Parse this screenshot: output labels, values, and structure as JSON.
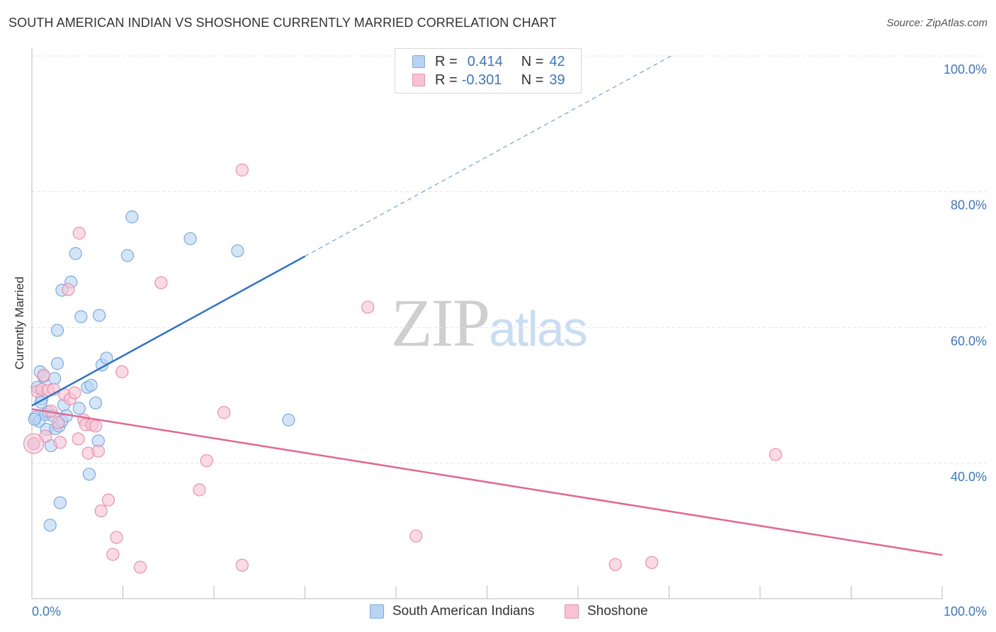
{
  "header": {
    "title": "SOUTH AMERICAN INDIAN VS SHOSHONE CURRENTLY MARRIED CORRELATION CHART",
    "source": "Source: ZipAtlas.com"
  },
  "watermark": {
    "zip": "ZIP",
    "atlas": "atlas"
  },
  "legend": {
    "rows": [
      {
        "r_label": "R =",
        "r_value": "0.414",
        "n_label": "N =",
        "n_value": "42"
      },
      {
        "r_label": "R =",
        "r_value": "-0.301",
        "n_label": "N =",
        "n_value": "39"
      }
    ]
  },
  "colors": {
    "blue_fill": "#b8d4f2",
    "blue_stroke": "#7aaae0",
    "blue_line": "#2f72c8",
    "pink_fill": "#f7c3d3",
    "pink_stroke": "#ec8fae",
    "pink_line": "#e06893",
    "grid": "#e3e3e3",
    "axis_text": "#3a78c9"
  },
  "chart_data": {
    "type": "scatter",
    "ylabel": "Currently Married",
    "x_tick_labels": [
      "0.0%",
      "100.0%"
    ],
    "y_tick_labels": [
      "100.0%",
      "80.0%",
      "60.0%",
      "40.0%"
    ],
    "xlim": [
      0,
      100
    ],
    "ylim": [
      18,
      102
    ],
    "y_gridlines": [
      40,
      60,
      80,
      100
    ],
    "series": [
      {
        "name": "South American Indians",
        "color": "blue",
        "points": [
          [
            0.2,
            42.9
          ],
          [
            0.4,
            46.8
          ],
          [
            0.6,
            51.2
          ],
          [
            0.8,
            46.2
          ],
          [
            0.9,
            53.5
          ],
          [
            1.1,
            49.5
          ],
          [
            1.3,
            52.8
          ],
          [
            1.5,
            47.2
          ],
          [
            1.6,
            45.0
          ],
          [
            1.8,
            47.6
          ],
          [
            2.0,
            30.9
          ],
          [
            2.1,
            42.6
          ],
          [
            2.3,
            47.0
          ],
          [
            2.5,
            52.5
          ],
          [
            2.6,
            45.1
          ],
          [
            2.8,
            54.7
          ],
          [
            2.8,
            59.6
          ],
          [
            3.0,
            45.5
          ],
          [
            3.1,
            34.2
          ],
          [
            3.3,
            46.2
          ],
          [
            3.3,
            65.5
          ],
          [
            3.5,
            48.6
          ],
          [
            3.8,
            47.0
          ],
          [
            4.3,
            66.7
          ],
          [
            4.8,
            70.9
          ],
          [
            5.2,
            48.1
          ],
          [
            5.4,
            61.6
          ],
          [
            6.1,
            51.2
          ],
          [
            6.3,
            38.4
          ],
          [
            6.5,
            51.5
          ],
          [
            7.0,
            48.9
          ],
          [
            7.3,
            43.3
          ],
          [
            7.4,
            61.8
          ],
          [
            7.7,
            54.5
          ],
          [
            8.2,
            55.5
          ],
          [
            10.5,
            70.6
          ],
          [
            11.0,
            76.3
          ],
          [
            17.4,
            73.1
          ],
          [
            22.6,
            71.3
          ],
          [
            28.2,
            46.4
          ],
          [
            0.3,
            46.5
          ],
          [
            1.0,
            49.0
          ]
        ],
        "trend": {
          "x": [
            0,
            30
          ],
          "y": [
            48.5,
            70.5
          ],
          "dashed_to": [
            70,
            100
          ]
        }
      },
      {
        "name": "Shoshone",
        "color": "pink",
        "points": [
          [
            0.2,
            42.9
          ],
          [
            0.6,
            50.6
          ],
          [
            1.1,
            50.9
          ],
          [
            1.3,
            53.0
          ],
          [
            1.8,
            50.8
          ],
          [
            2.1,
            47.7
          ],
          [
            2.4,
            50.9
          ],
          [
            2.9,
            46.0
          ],
          [
            3.1,
            43.1
          ],
          [
            3.6,
            50.1
          ],
          [
            4.0,
            65.6
          ],
          [
            4.2,
            49.5
          ],
          [
            4.7,
            50.4
          ],
          [
            5.1,
            43.6
          ],
          [
            5.2,
            73.9
          ],
          [
            5.7,
            46.4
          ],
          [
            5.9,
            45.7
          ],
          [
            6.2,
            41.5
          ],
          [
            6.6,
            45.7
          ],
          [
            7.3,
            41.8
          ],
          [
            7.6,
            33.0
          ],
          [
            8.4,
            34.6
          ],
          [
            8.9,
            26.6
          ],
          [
            9.3,
            29.1
          ],
          [
            9.9,
            53.5
          ],
          [
            11.9,
            24.7
          ],
          [
            14.2,
            66.6
          ],
          [
            18.4,
            36.1
          ],
          [
            19.2,
            40.4
          ],
          [
            21.1,
            47.5
          ],
          [
            23.1,
            25.0
          ],
          [
            23.1,
            83.2
          ],
          [
            36.9,
            63.0
          ],
          [
            42.2,
            29.3
          ],
          [
            64.1,
            25.1
          ],
          [
            68.1,
            25.4
          ],
          [
            81.7,
            41.3
          ],
          [
            1.5,
            44.0
          ],
          [
            7.0,
            45.5
          ]
        ],
        "trend": {
          "x": [
            0,
            100
          ],
          "y": [
            48.0,
            26.5
          ]
        }
      }
    ]
  },
  "bottom_legend": {
    "items": [
      {
        "label": "South American Indians",
        "color": "blue"
      },
      {
        "label": "Shoshone",
        "color": "pink"
      }
    ]
  }
}
